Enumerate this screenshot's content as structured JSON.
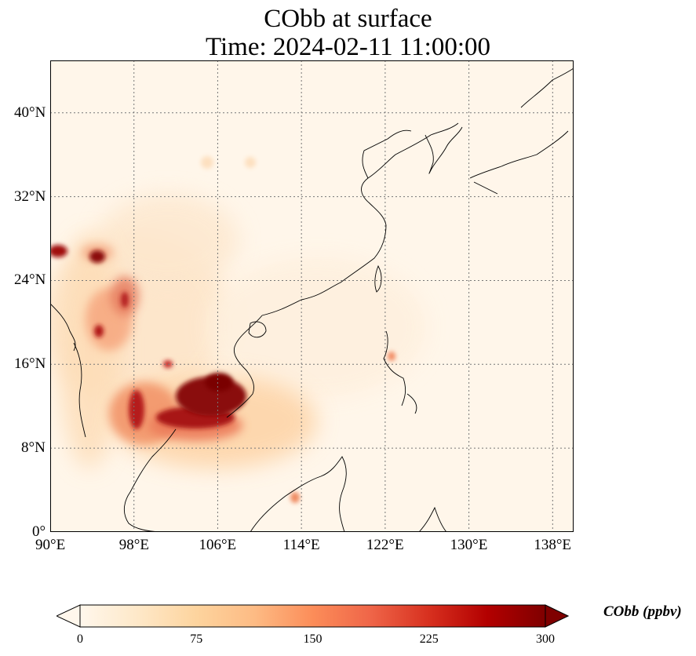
{
  "title": {
    "line1": "CObb at surface",
    "line2": "Time: 2024-02-11 11:00:00"
  },
  "map": {
    "projection": "PlateCarree",
    "extent_lon": [
      90,
      140
    ],
    "extent_lat": [
      0,
      45
    ],
    "gridlines": "dotted",
    "lon_ticks": [
      "90°E",
      "98°E",
      "106°E",
      "114°E",
      "122°E",
      "130°E",
      "138°E"
    ],
    "lat_ticks": [
      "0°",
      "8°N",
      "16°N",
      "24°N",
      "32°N",
      "40°N"
    ],
    "lon_values": [
      90,
      98,
      106,
      114,
      122,
      130,
      138
    ],
    "lat_values": [
      0,
      8,
      16,
      24,
      32,
      40
    ]
  },
  "colorbar": {
    "label": "CObb (ppbv)",
    "colormap": "OrRd",
    "min": 0,
    "max": 300,
    "extend": "both",
    "ticks": [
      "0",
      "75",
      "150",
      "225",
      "300"
    ],
    "colors": [
      "#fff7ec",
      "#fee8c8",
      "#fdd49e",
      "#fdbb84",
      "#fc8d59",
      "#ef6548",
      "#d7301f",
      "#b30000",
      "#7f0000"
    ]
  }
}
